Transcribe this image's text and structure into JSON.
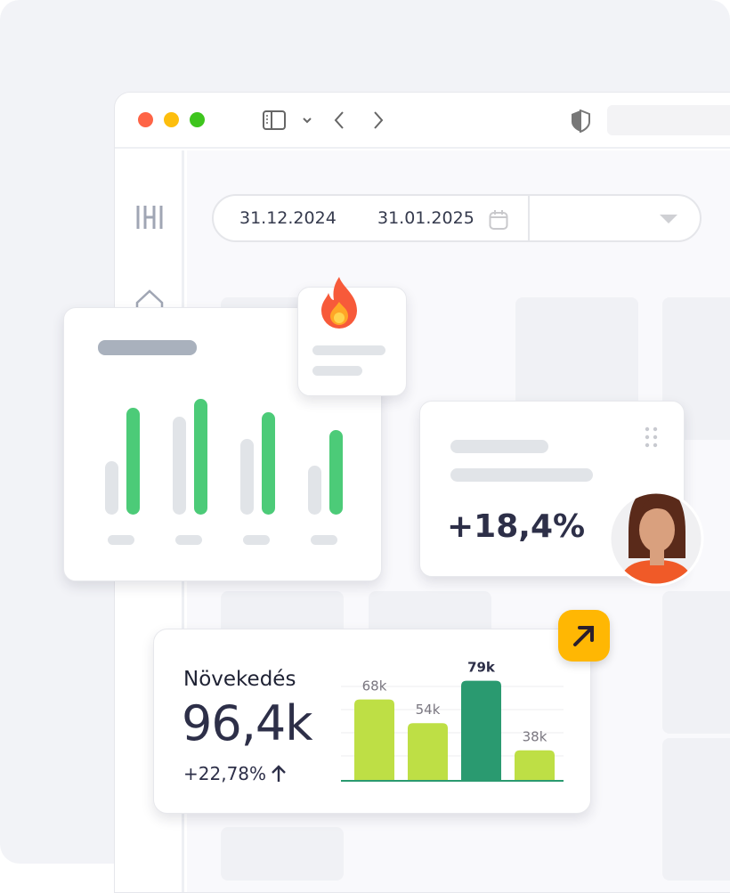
{
  "browser": {
    "traffic_lights": [
      "#fe6446",
      "#fdbe0d",
      "#3ec51d"
    ]
  },
  "date_range": {
    "start": "31.12.2024",
    "end": "31.01.2025",
    "select_value": ""
  },
  "stat_card": {
    "value": "+18,4%"
  },
  "growth_card": {
    "title": "Növekedés",
    "value": "96,4k",
    "change": "+22,78%",
    "change_icon": "arrow-up-icon"
  },
  "chart_data": {
    "type": "bar",
    "categories": [
      "",
      "",
      "",
      ""
    ],
    "values": [
      68,
      54,
      79,
      38
    ],
    "labels": [
      "68k",
      "54k",
      "79k",
      "38k"
    ],
    "colors": [
      "#bedf45",
      "#bedf45",
      "#2a9a70",
      "#bedf45"
    ],
    "ylim": [
      20,
      83
    ],
    "grid": true
  },
  "colors": {
    "accent_green": "#4ccb78",
    "accent_yellow": "#ffb703",
    "text_dark": "#2d2f48"
  }
}
